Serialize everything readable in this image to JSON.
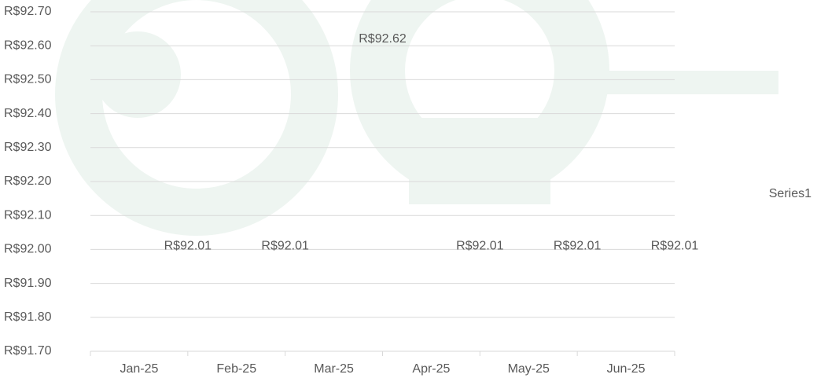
{
  "chart_data": {
    "type": "line",
    "categories": [
      "Jan-25",
      "Feb-25",
      "Mar-25",
      "Apr-25",
      "May-25",
      "Jun-25"
    ],
    "series": [
      {
        "name": "Series1",
        "color": "#4472c4",
        "values": [
          92.01,
          92.01,
          92.62,
          92.01,
          92.01,
          92.01
        ],
        "value_labels": [
          "R$92.01",
          "R$92.01",
          "R$92.62",
          "R$92.01",
          "R$92.01",
          "R$92.01"
        ]
      }
    ],
    "ylim": [
      91.7,
      92.7
    ],
    "yticks": [
      {
        "value": 91.7,
        "label": "R$91.70"
      },
      {
        "value": 91.8,
        "label": "R$91.80"
      },
      {
        "value": 91.9,
        "label": "R$91.90"
      },
      {
        "value": 92.0,
        "label": "R$92.00"
      },
      {
        "value": 92.1,
        "label": "R$92.10"
      },
      {
        "value": 92.2,
        "label": "R$92.20"
      },
      {
        "value": 92.3,
        "label": "R$92.30"
      },
      {
        "value": 92.4,
        "label": "R$92.40"
      },
      {
        "value": 92.5,
        "label": "R$92.50"
      },
      {
        "value": 92.6,
        "label": "R$92.60"
      },
      {
        "value": 92.7,
        "label": "R$92.70"
      }
    ],
    "grid": true,
    "legend": "right"
  }
}
